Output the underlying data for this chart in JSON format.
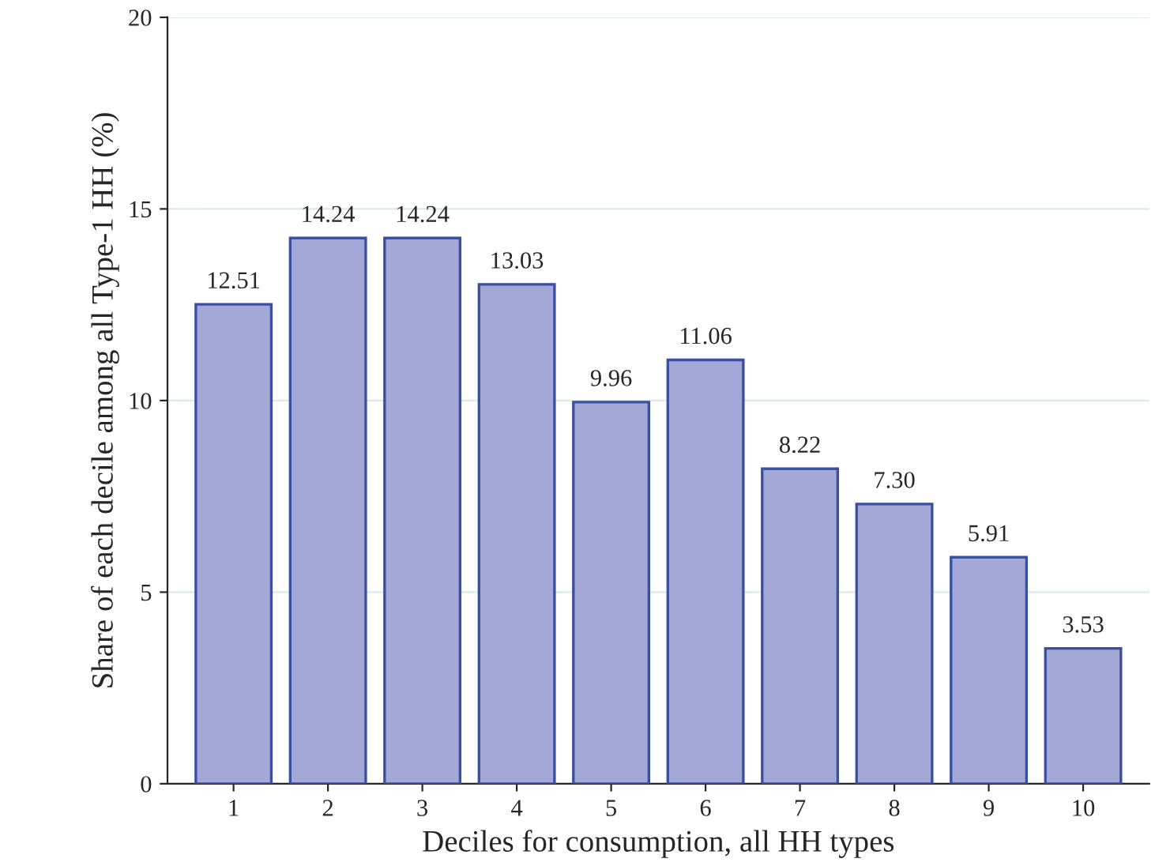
{
  "chart_data": {
    "type": "bar",
    "xlabel": "Deciles for consumption, all HH types",
    "ylabel": "Share of each decile among all Type-1 HH (%)",
    "categories": [
      "1",
      "2",
      "3",
      "4",
      "5",
      "6",
      "7",
      "8",
      "9",
      "10"
    ],
    "values": [
      12.51,
      14.24,
      14.24,
      13.03,
      9.96,
      11.06,
      8.22,
      7.3,
      5.91,
      3.53
    ],
    "value_labels": [
      "12.51",
      "14.24",
      "14.24",
      "13.03",
      "9.96",
      "11.06",
      "8.22",
      "7.30",
      "5.91",
      "3.53"
    ],
    "color": "#a3a8d6",
    "ylim": [
      0,
      20
    ],
    "yticks": [
      0,
      5,
      10,
      15,
      20
    ],
    "grid": "y"
  }
}
